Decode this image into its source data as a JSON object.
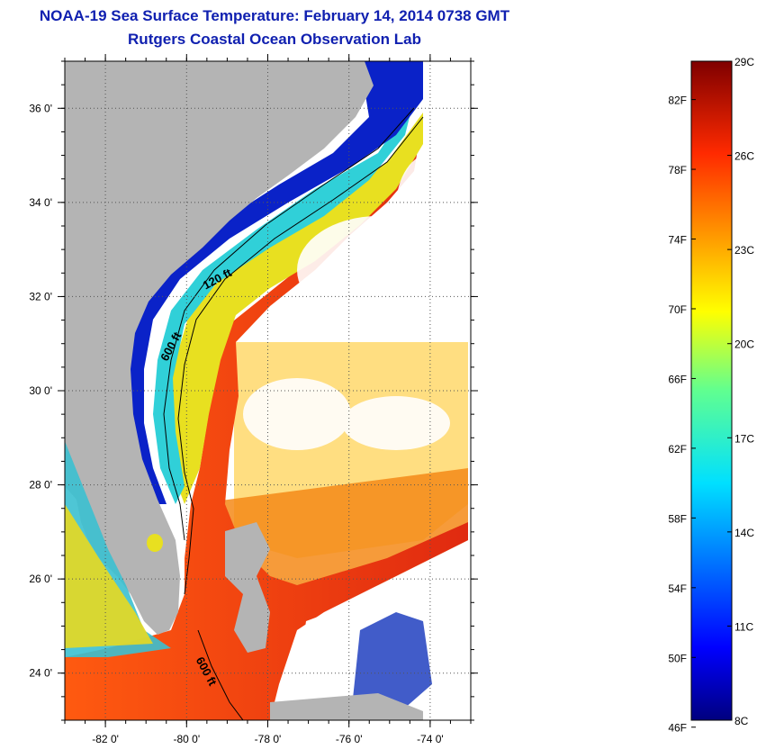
{
  "header": {
    "title": "NOAA-19 Sea Surface Temperature:  February 14, 2014 0738 GMT",
    "subtitle": "Rutgers Coastal Ocean Observation Lab"
  },
  "map": {
    "lon_range": [
      -83,
      -73
    ],
    "lat_range": [
      23,
      37
    ],
    "lon_ticks": [
      {
        "value": -82,
        "label": "-82 0'"
      },
      {
        "value": -80,
        "label": "-80 0'"
      },
      {
        "value": -78,
        "label": "-78 0'"
      },
      {
        "value": -76,
        "label": "-76 0'"
      },
      {
        "value": -74,
        "label": "-74 0'"
      }
    ],
    "lat_ticks": [
      {
        "value": 24,
        "label": "24 0'"
      },
      {
        "value": 26,
        "label": "26 0'"
      },
      {
        "value": 28,
        "label": "28 0'"
      },
      {
        "value": 30,
        "label": "30 0'"
      },
      {
        "value": 32,
        "label": "32 0'"
      },
      {
        "value": 34,
        "label": "34 0'"
      },
      {
        "value": 36,
        "label": "36 0'"
      }
    ],
    "contour_labels": [
      {
        "text": "120 ft",
        "lon": -79.2,
        "lat": 32.3
      },
      {
        "text": "600 ft",
        "lon": -80.3,
        "lat": 30.9
      },
      {
        "text": "600 ft",
        "lon": -79.6,
        "lat": 24.0
      }
    ],
    "colors": {
      "land": "#b4b4b4",
      "cloud": "#ffffff",
      "gulfstream": "#e83c12",
      "shelf_cold": "#0a22c8"
    }
  },
  "colorbar": {
    "temp_range_c": [
      8,
      29
    ],
    "fahrenheit_labels": [
      "82F",
      "78F",
      "74F",
      "70F",
      "66F",
      "62F",
      "58F",
      "54F",
      "50F",
      "46F"
    ],
    "celsius_labels": [
      "29C",
      "26C",
      "23C",
      "20C",
      "17C",
      "14C",
      "11C",
      "8C"
    ],
    "fahrenheit_values": [
      82,
      78,
      74,
      70,
      66,
      62,
      58,
      54,
      50,
      46
    ],
    "celsius_values": [
      29,
      26,
      23,
      20,
      17,
      14,
      11,
      8
    ]
  }
}
